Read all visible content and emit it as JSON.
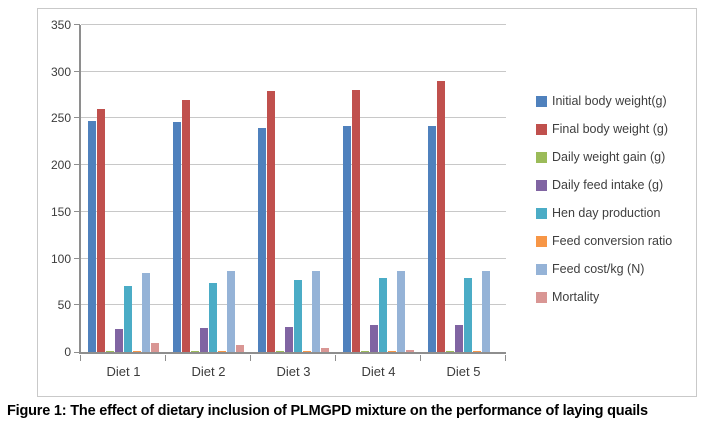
{
  "caption": {
    "text": "Figure 1: The effect of dietary inclusion of PLMGPD mixture on the performance of laying quails"
  },
  "chart_data": {
    "type": "bar",
    "title": "",
    "xlabel": "",
    "ylabel": "",
    "categories": [
      "Diet 1",
      "Diet 2",
      "Diet 3",
      "Diet 4",
      "Diet 5"
    ],
    "series": [
      {
        "name": "Initial body weight(g)",
        "color": "#4F81BD",
        "values": [
          247,
          246,
          240,
          242,
          242
        ]
      },
      {
        "name": "Final body weight (g)",
        "color": "#C0504D",
        "values": [
          260,
          270,
          279,
          280,
          290
        ]
      },
      {
        "name": "Daily weight gain (g)",
        "color": "#9BBB59",
        "values": [
          1,
          1,
          1,
          1,
          1
        ]
      },
      {
        "name": "Daily feed intake (g)",
        "color": "#8064A2",
        "values": [
          25,
          26,
          27,
          29,
          29
        ]
      },
      {
        "name": "Hen day production",
        "color": "#4BACC6",
        "values": [
          71,
          74,
          77,
          79,
          79
        ]
      },
      {
        "name": "Feed conversion ratio",
        "color": "#F79646",
        "values": [
          1,
          1,
          1,
          1,
          1
        ]
      },
      {
        "name": "Feed cost/kg (N)",
        "color": "#95B3D7",
        "values": [
          85,
          87,
          87,
          87,
          87
        ]
      },
      {
        "name": "Mortality",
        "color": "#D99694",
        "values": [
          10,
          7,
          4,
          2,
          0
        ]
      }
    ],
    "ylim": [
      0,
      350
    ],
    "ytick_step": 50,
    "grid": true,
    "legend_position": "right",
    "axis_color": "#8e8e8e",
    "gridline_color": "#c8c8c8"
  }
}
